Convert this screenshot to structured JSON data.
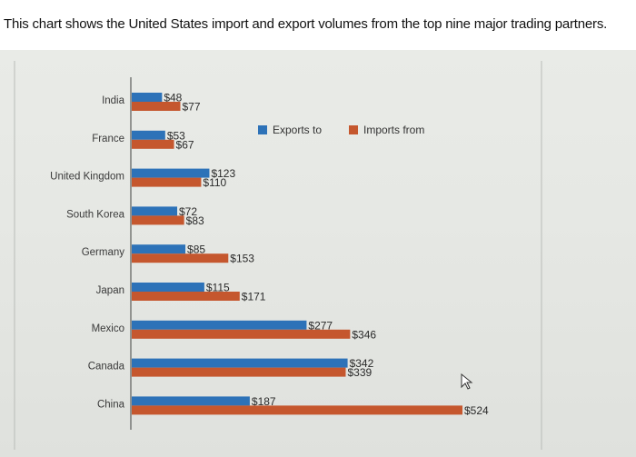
{
  "caption": "This chart shows the United States import and export volumes from the top nine major trading partners.",
  "colors": {
    "exports": "#2d72b8",
    "imports": "#c5572e"
  },
  "chart_data": {
    "type": "bar",
    "orientation": "horizontal",
    "categories": [
      "India",
      "France",
      "United Kingdom",
      "South Korea",
      "Germany",
      "Japan",
      "Mexico",
      "Canada",
      "China"
    ],
    "series": [
      {
        "name": "Exports to",
        "values": [
          48,
          53,
          123,
          72,
          85,
          115,
          277,
          342,
          187
        ],
        "labels": [
          "$48",
          "$53",
          "$123",
          "$72",
          "$85",
          "$115",
          "$277",
          "$342",
          "$187"
        ]
      },
      {
        "name": "Imports from",
        "values": [
          77,
          67,
          110,
          83,
          153,
          171,
          346,
          339,
          524
        ],
        "labels": [
          "$77",
          "$67",
          "$110",
          "$83",
          "$153",
          "$171",
          "$346",
          "$339",
          "$524"
        ]
      }
    ],
    "xlim": [
      0,
      524
    ],
    "legend_position": "top-right",
    "grid": false
  }
}
